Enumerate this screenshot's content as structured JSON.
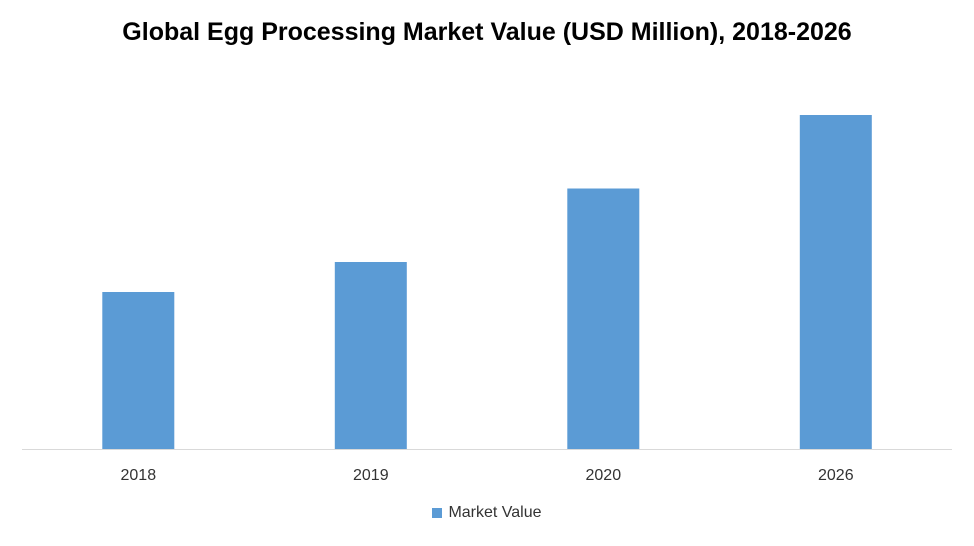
{
  "chart_data": {
    "type": "bar",
    "title": "Global Egg Processing Market Value (USD Million), 2018-2026",
    "xlabel": "",
    "ylabel": "",
    "categories": [
      "2018",
      "2019",
      "2020",
      "2026"
    ],
    "series": [
      {
        "name": "Market Value",
        "values": [
          47,
          56,
          78,
          100
        ]
      }
    ],
    "ylim": [
      0,
      100
    ],
    "grid": false,
    "legend": "bottom",
    "colors": {
      "bar": "#5B9BD5",
      "axis": "#D9D9D9",
      "tick_text": "#333333"
    }
  }
}
